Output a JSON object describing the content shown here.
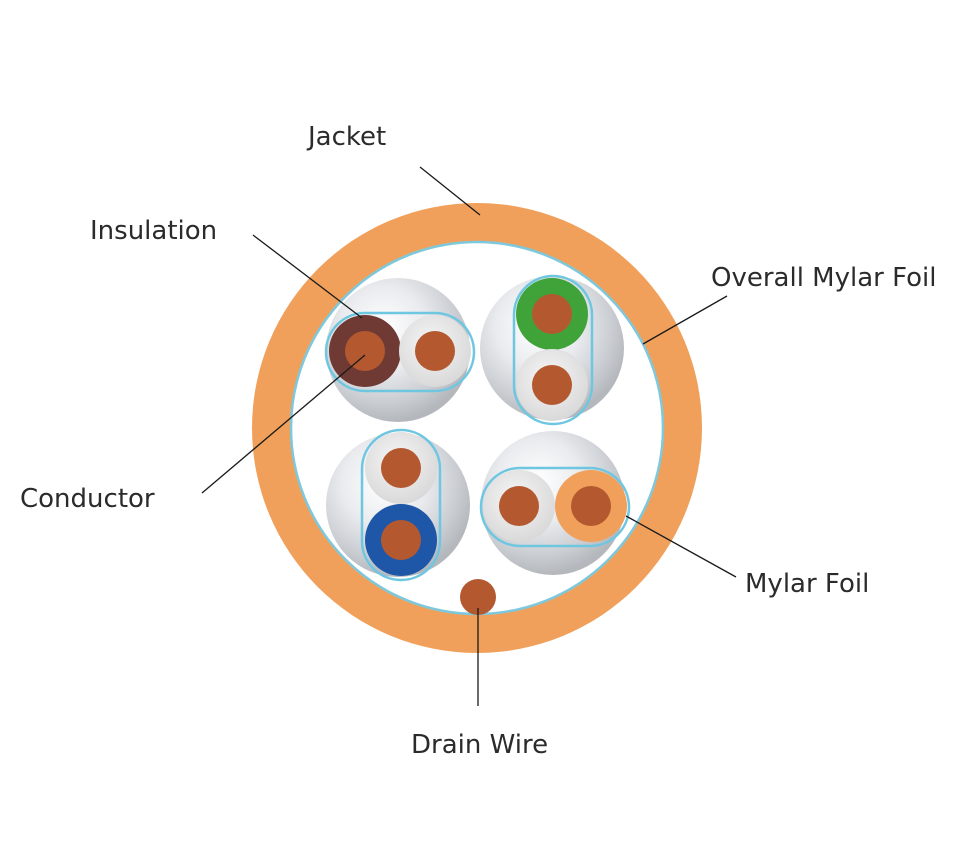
{
  "title": "",
  "labels": {
    "jacket": "Jacket",
    "insulation": "Insulation",
    "overall_mylar_foil": "Overall Mylar Foil",
    "conductor": "Conductor",
    "mylar_foil": "Mylar Foil",
    "drain_wire": "Drain Wire"
  },
  "colors": {
    "jacket": "#F0A05A",
    "overall_foil": "#7EC8DC",
    "pair_foil": "#6EC6E0",
    "conductor": "#B4592F",
    "insulation_white": "#E6E6E6",
    "insulation_brown": "#6E3A33",
    "insulation_green": "#3FA33A",
    "insulation_blue": "#1E56A8",
    "insulation_orange": "#F0A05A",
    "drain_wire": "#B4592F"
  },
  "pairs": [
    {
      "name": "brown-pair",
      "colored": "brown",
      "striped": "white"
    },
    {
      "name": "green-pair",
      "colored": "green",
      "striped": "white"
    },
    {
      "name": "blue-pair",
      "colored": "blue",
      "striped": "white"
    },
    {
      "name": "orange-pair",
      "colored": "orange",
      "striped": "white"
    }
  ]
}
